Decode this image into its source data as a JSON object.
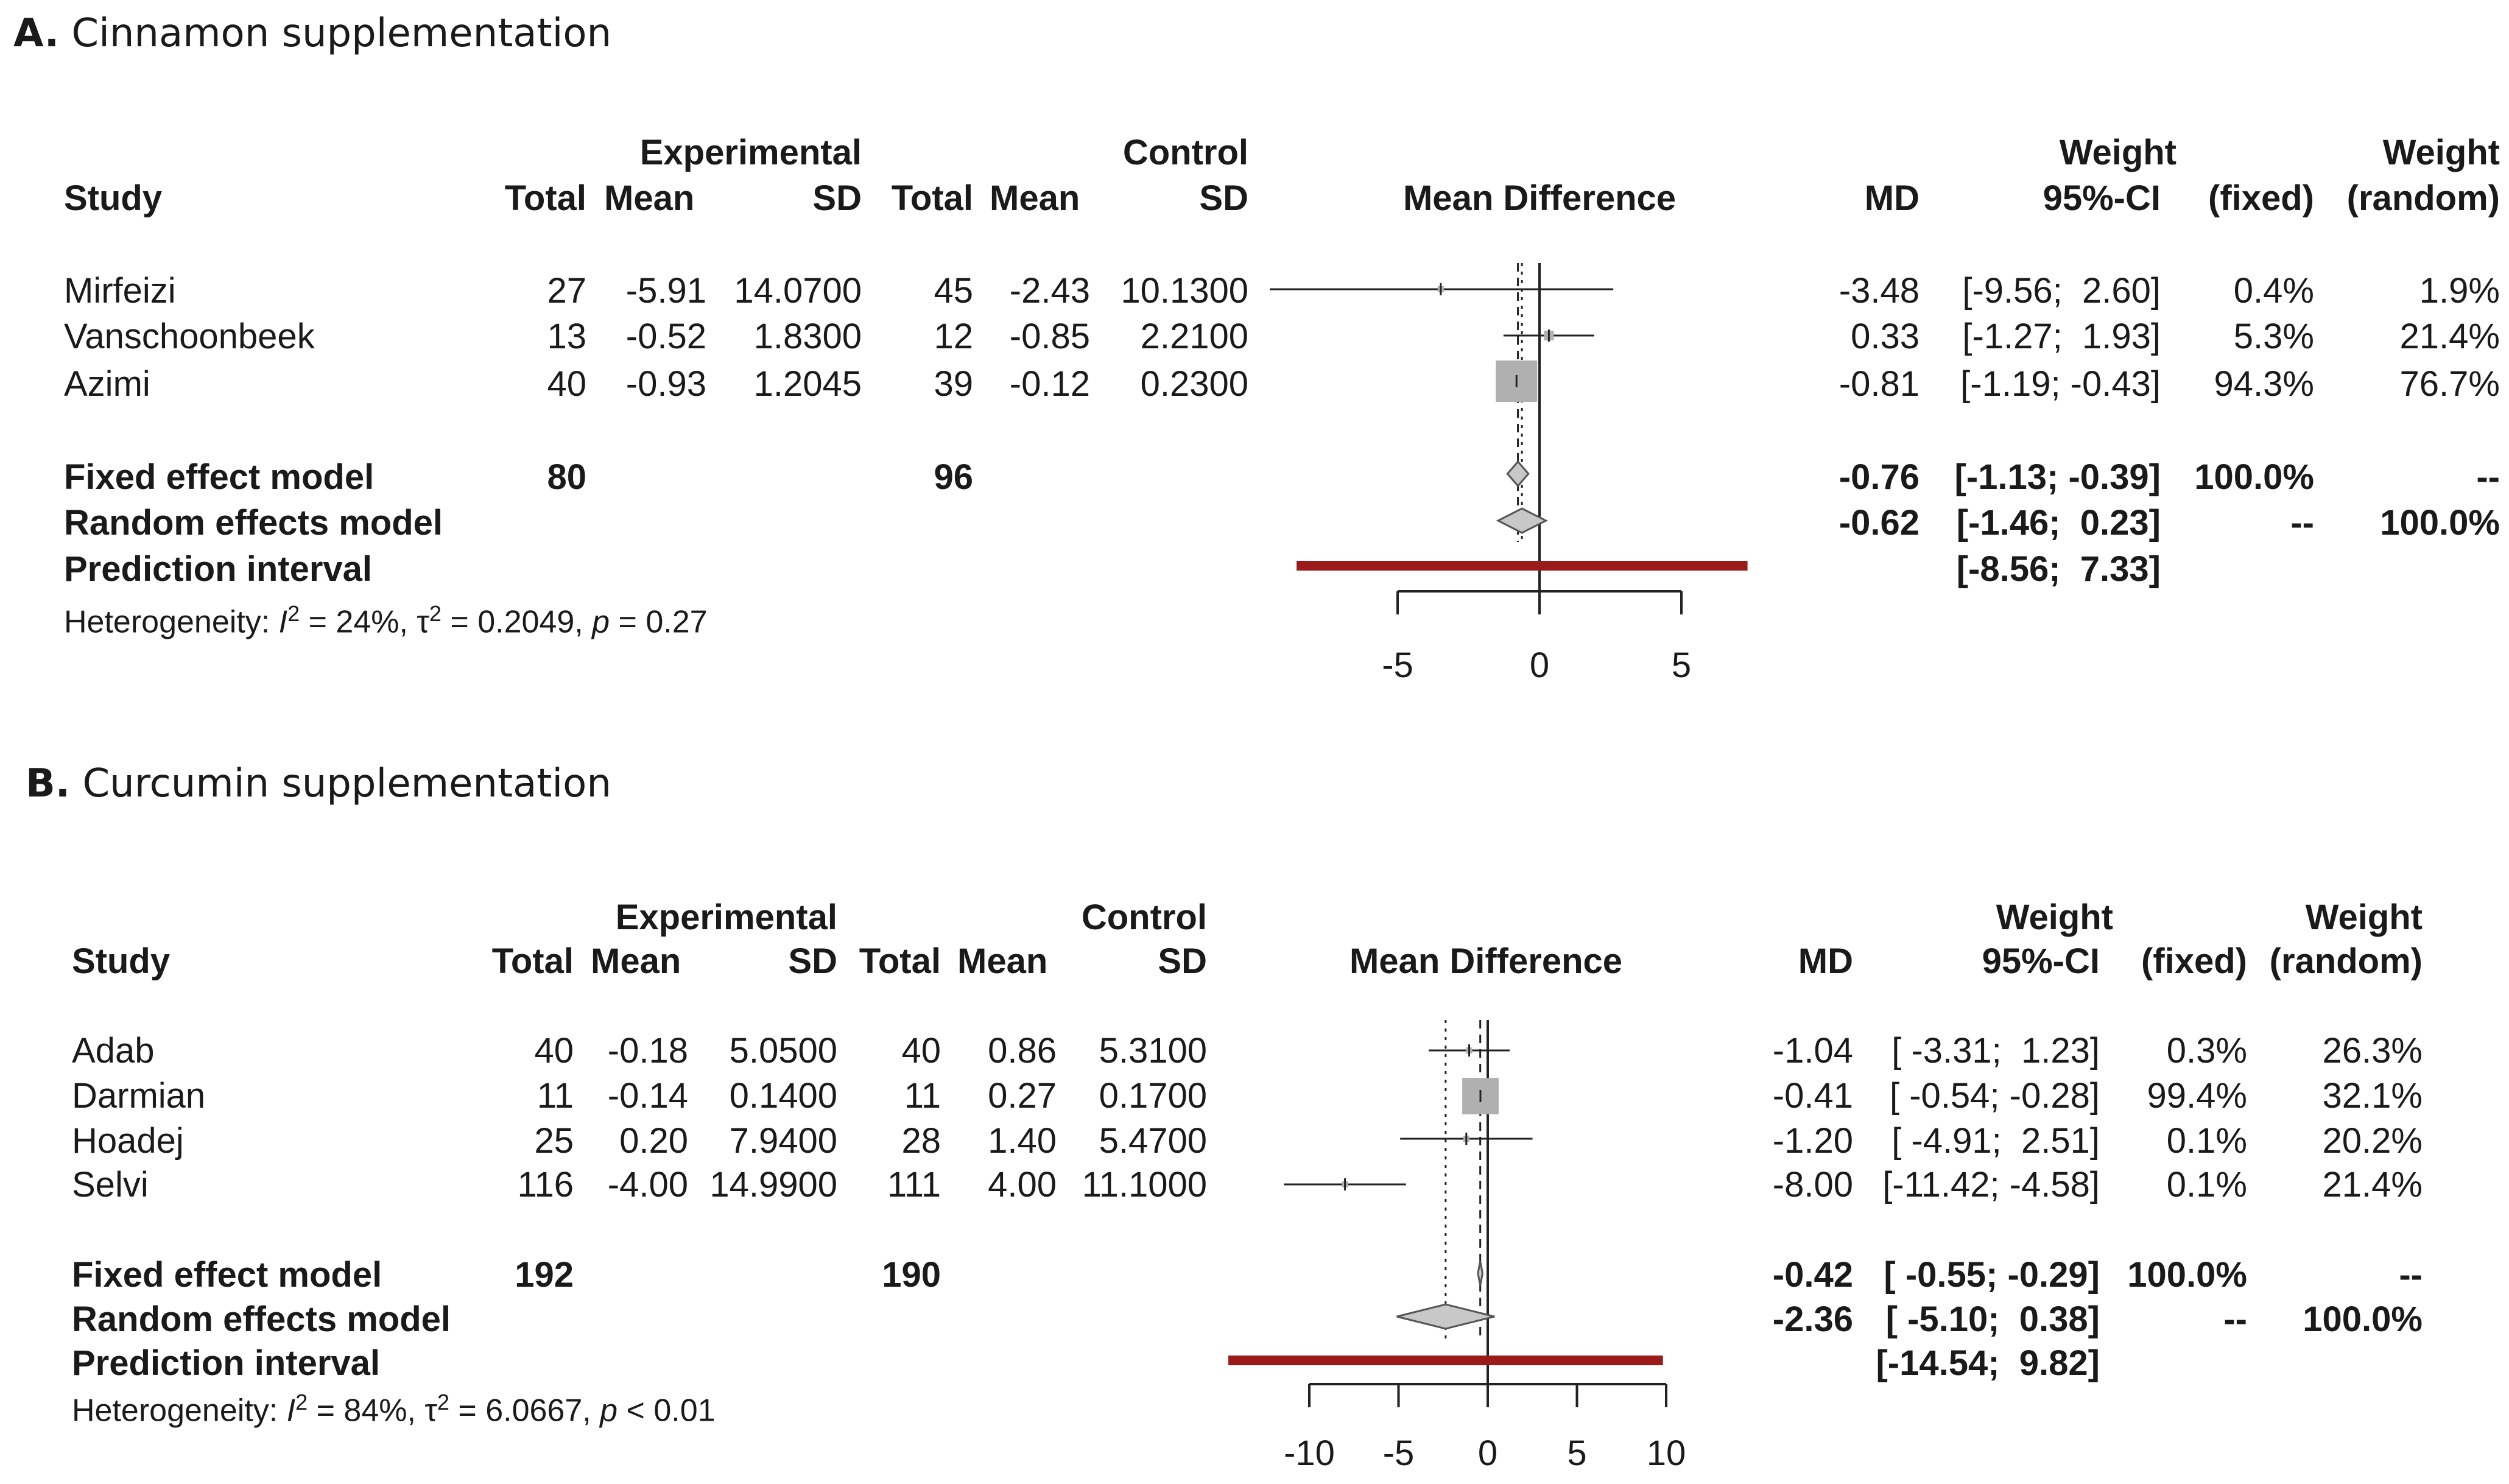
{
  "figure": {
    "panels": [
      {
        "letter": "A.",
        "title": "Cinnamon supplementation",
        "headers": {
          "study": "Study",
          "experimental": "Experimental",
          "control": "Control",
          "total": "Total",
          "mean": "Mean",
          "sd": "SD",
          "plot": "Mean Difference",
          "md": "MD",
          "ci": "95%-CI",
          "weight": "Weight",
          "fixed": "(fixed)",
          "random": "(random)"
        },
        "studies": [
          {
            "name": "Mirfeizi",
            "e_total": "27",
            "e_mean": "-5.91",
            "e_sd": "14.0700",
            "c_total": "45",
            "c_mean": "-2.43",
            "c_sd": "10.1300",
            "md": "-3.48",
            "ci": "[-9.56;  2.60]",
            "w_fixed": "0.4%",
            "w_random": "1.9%"
          },
          {
            "name": "Vanschoonbeek",
            "e_total": "13",
            "e_mean": "-0.52",
            "e_sd": "1.8300",
            "c_total": "12",
            "c_mean": "-0.85",
            "c_sd": "2.2100",
            "md": "0.33",
            "ci": "[-1.27;  1.93]",
            "w_fixed": "5.3%",
            "w_random": "21.4%"
          },
          {
            "name": "Azimi",
            "e_total": "40",
            "e_mean": "-0.93",
            "e_sd": "1.2045",
            "c_total": "39",
            "c_mean": "-0.12",
            "c_sd": "0.2300",
            "md": "-0.81",
            "ci": "[-1.19; -0.43]",
            "w_fixed": "94.3%",
            "w_random": "76.7%"
          }
        ],
        "fixed_model": {
          "label": "Fixed effect model",
          "e_total": "80",
          "c_total": "96",
          "md": "-0.76",
          "ci": "[-1.13; -0.39]",
          "w_fixed": "100.0%",
          "w_random": "--"
        },
        "random_model": {
          "label": "Random effects model",
          "md": "-0.62",
          "ci": "[-1.46;  0.23]",
          "w_fixed": "--",
          "w_random": "100.0%"
        },
        "prediction": {
          "label": "Prediction interval",
          "ci": "[-8.56;  7.33]"
        },
        "heterogeneity": {
          "prefix": "Heterogeneity: ",
          "i2_sym": "I",
          "i2_val": " = 24%, ",
          "tau_sym": "τ",
          "tau_val": " = 0.2049, ",
          "p_sym": "p",
          "p_val": " = 0.27"
        }
      },
      {
        "letter": "B.",
        "title": "Curcumin supplementation",
        "headers": {
          "study": "Study",
          "experimental": "Experimental",
          "control": "Control",
          "total": "Total",
          "mean": "Mean",
          "sd": "SD",
          "plot": "Mean Difference",
          "md": "MD",
          "ci": "95%-CI",
          "weight": "Weight",
          "fixed": "(fixed)",
          "random": "(random)"
        },
        "studies": [
          {
            "name": "Adab",
            "e_total": "40",
            "e_mean": "-0.18",
            "e_sd": "5.0500",
            "c_total": "40",
            "c_mean": "0.86",
            "c_sd": "5.3100",
            "md": "-1.04",
            "ci": "[ -3.31;  1.23]",
            "w_fixed": "0.3%",
            "w_random": "26.3%"
          },
          {
            "name": "Darmian",
            "e_total": "11",
            "e_mean": "-0.14",
            "e_sd": "0.1400",
            "c_total": "11",
            "c_mean": "0.27",
            "c_sd": "0.1700",
            "md": "-0.41",
            "ci": "[ -0.54; -0.28]",
            "w_fixed": "99.4%",
            "w_random": "32.1%"
          },
          {
            "name": "Hoadej",
            "e_total": "25",
            "e_mean": "0.20",
            "e_sd": "7.9400",
            "c_total": "28",
            "c_mean": "1.40",
            "c_sd": "5.4700",
            "md": "-1.20",
            "ci": "[ -4.91;  2.51]",
            "w_fixed": "0.1%",
            "w_random": "20.2%"
          },
          {
            "name": "Selvi",
            "e_total": "116",
            "e_mean": "-4.00",
            "e_sd": "14.9900",
            "c_total": "111",
            "c_mean": "4.00",
            "c_sd": "11.1000",
            "md": "-8.00",
            "ci": "[-11.42; -4.58]",
            "w_fixed": "0.1%",
            "w_random": "21.4%"
          }
        ],
        "fixed_model": {
          "label": "Fixed effect model",
          "e_total": "192",
          "c_total": "190",
          "md": "-0.42",
          "ci": "[ -0.55; -0.29]",
          "w_fixed": "100.0%",
          "w_random": "--"
        },
        "random_model": {
          "label": "Random effects model",
          "md": "-2.36",
          "ci": "[ -5.10;  0.38]",
          "w_fixed": "--",
          "w_random": "100.0%"
        },
        "prediction": {
          "label": "Prediction interval",
          "ci": "[-14.54;  9.82]"
        },
        "heterogeneity": {
          "prefix": "Heterogeneity: ",
          "i2_sym": "I",
          "i2_val": " = 84%, ",
          "tau_sym": "τ",
          "tau_val": " = 6.0667, ",
          "p_sym": "p",
          "p_val": " < 0.01"
        }
      }
    ]
  },
  "chart_data": [
    {
      "type": "forest",
      "title": "Cinnamon supplementation",
      "xlabel": "Mean Difference",
      "xlim": [
        -5,
        5
      ],
      "xticks": [
        -5,
        0,
        5
      ],
      "studies": [
        {
          "name": "Mirfeizi",
          "md": -3.48,
          "lower": -9.56,
          "upper": 2.6,
          "weight_fixed": 0.4
        },
        {
          "name": "Vanschoonbeek",
          "md": 0.33,
          "lower": -1.27,
          "upper": 1.93,
          "weight_fixed": 5.3
        },
        {
          "name": "Azimi",
          "md": -0.81,
          "lower": -1.19,
          "upper": -0.43,
          "weight_fixed": 94.3
        }
      ],
      "fixed": {
        "md": -0.76,
        "lower": -1.13,
        "upper": -0.39
      },
      "random": {
        "md": -0.62,
        "lower": -1.46,
        "upper": 0.23
      },
      "prediction": {
        "lower": -8.56,
        "upper": 7.33
      },
      "colors": {
        "prediction": "#9b1b1b",
        "square": "#b0b0b0",
        "diamond": "#c8c8c8",
        "line": "#222222"
      }
    },
    {
      "type": "forest",
      "title": "Curcumin supplementation",
      "xlabel": "Mean Difference",
      "xlim": [
        -10,
        10
      ],
      "xticks": [
        -10,
        -5,
        0,
        5,
        10
      ],
      "studies": [
        {
          "name": "Adab",
          "md": -1.04,
          "lower": -3.31,
          "upper": 1.23,
          "weight_fixed": 0.3
        },
        {
          "name": "Darmian",
          "md": -0.41,
          "lower": -0.54,
          "upper": -0.28,
          "weight_fixed": 99.4
        },
        {
          "name": "Hoadej",
          "md": -1.2,
          "lower": -4.91,
          "upper": 2.51,
          "weight_fixed": 0.1
        },
        {
          "name": "Selvi",
          "md": -8.0,
          "lower": -11.42,
          "upper": -4.58,
          "weight_fixed": 0.1
        }
      ],
      "fixed": {
        "md": -0.42,
        "lower": -0.55,
        "upper": -0.29
      },
      "random": {
        "md": -2.36,
        "lower": -5.1,
        "upper": 0.38
      },
      "prediction": {
        "lower": -14.54,
        "upper": 9.82
      },
      "colors": {
        "prediction": "#9b1b1b",
        "square": "#b0b0b0",
        "diamond": "#c8c8c8",
        "line": "#222222"
      }
    }
  ]
}
